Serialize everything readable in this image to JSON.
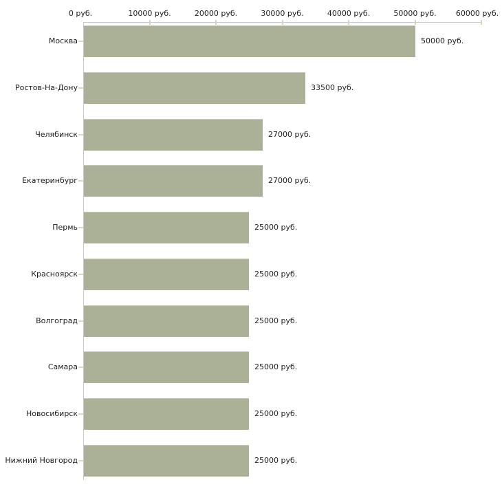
{
  "chart_data": {
    "type": "bar",
    "orientation": "horizontal",
    "title": "",
    "unit": "руб.",
    "categories": [
      "Москва",
      "Ростов-На-Дону",
      "Челябинск",
      "Екатеринбург",
      "Пермь",
      "Красноярск",
      "Волгоград",
      "Самара",
      "Новосибирск",
      "Нижний Новгород"
    ],
    "values": [
      50000,
      33500,
      27000,
      27000,
      25000,
      25000,
      25000,
      25000,
      25000,
      25000
    ],
    "value_labels": [
      "50000 руб.",
      "33500 руб.",
      "27000 руб.",
      "27000 руб.",
      "25000 руб.",
      "25000 руб.",
      "25000 руб.",
      "25000 руб.",
      "25000 руб.",
      "25000 руб."
    ],
    "x_axis": {
      "position": "top",
      "range": [
        0,
        60000
      ],
      "tick_values": [
        0,
        10000,
        20000,
        30000,
        40000,
        50000,
        60000
      ],
      "tick_labels": [
        "0 руб.",
        "10000 руб.",
        "20000 руб.",
        "30000 руб.",
        "40000 руб.",
        "50000 руб.",
        "60000 руб."
      ]
    },
    "grid": false,
    "legend": false,
    "colors": {
      "bar_fill": "#abb197",
      "bar_top_edge": "#c4c8b2",
      "axis_line": "#c6c6c6",
      "tick_mark": "#d6d7ab",
      "category_tick_mark": "#d9dabd",
      "text": "#1c1c1c",
      "background": "#ffffff"
    }
  }
}
